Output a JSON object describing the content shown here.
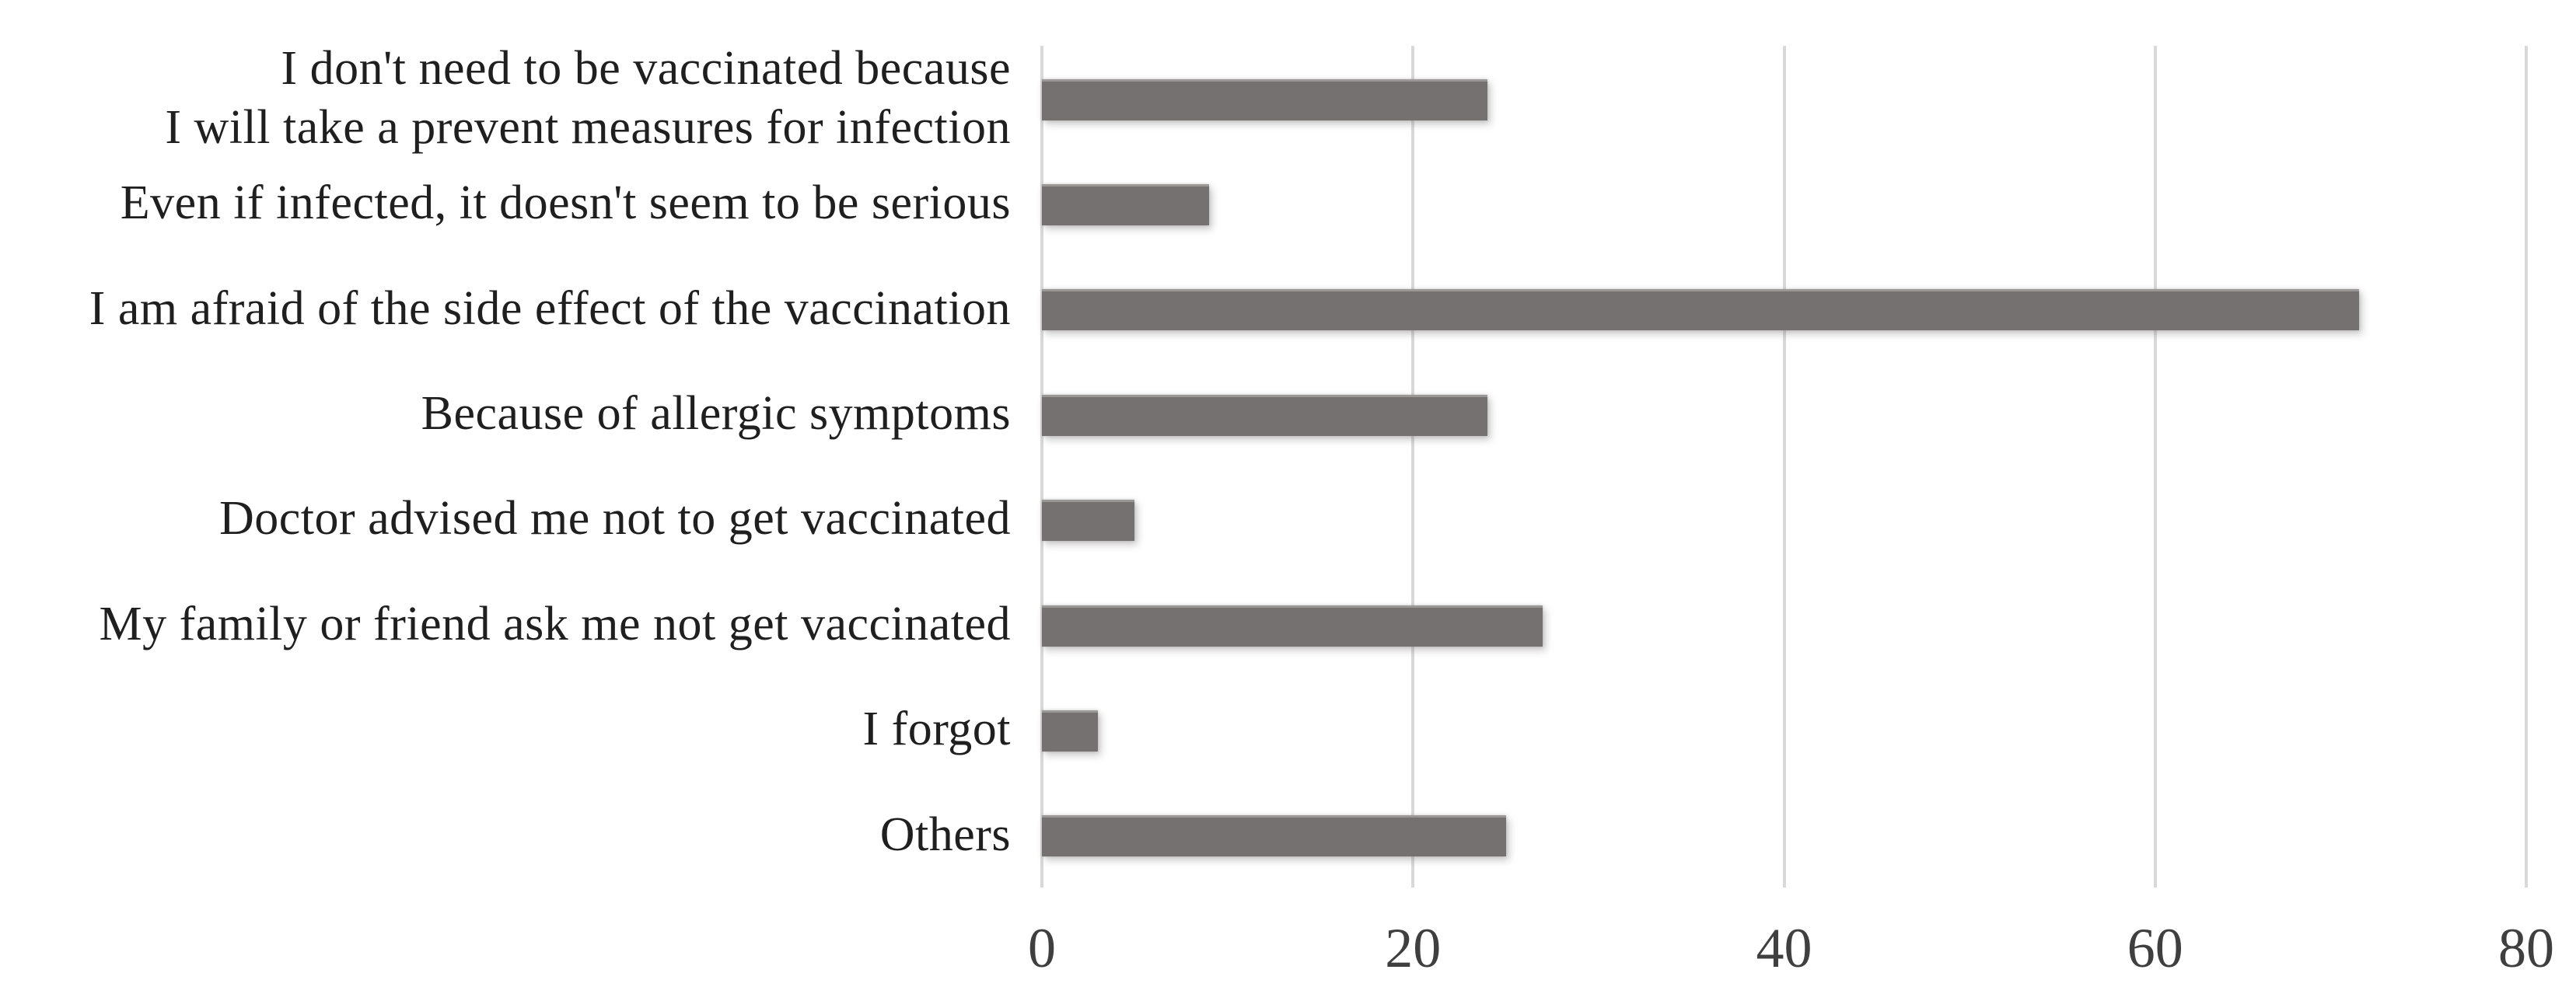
{
  "chart_data": {
    "type": "bar",
    "orientation": "horizontal",
    "title": "",
    "xlabel": "",
    "ylabel": "",
    "categories": [
      "I don't need to be vaccinated because\nI will take a  prevent measures for infection",
      "Even if infected, it doesn't seem to be serious",
      "I am afraid of the side effect of the vaccination",
      "Because of allergic symptoms",
      "Doctor advised me not to get vaccinated",
      "My family or friend ask me not get vaccinated",
      "I forgot",
      "Others"
    ],
    "values": [
      24,
      9,
      71,
      24,
      5,
      27,
      3,
      25
    ],
    "xlim": [
      0,
      80
    ],
    "xticks": [
      0,
      20,
      40,
      60,
      80
    ],
    "grid": "vertical-gridlines-only",
    "legend": "none",
    "bar_color": "#747170",
    "gridline_color": "#d9d9d9",
    "category_label_color": "#1f1f1f",
    "tick_label_color": "#3f3f3f",
    "background_color": "#ffffff"
  }
}
